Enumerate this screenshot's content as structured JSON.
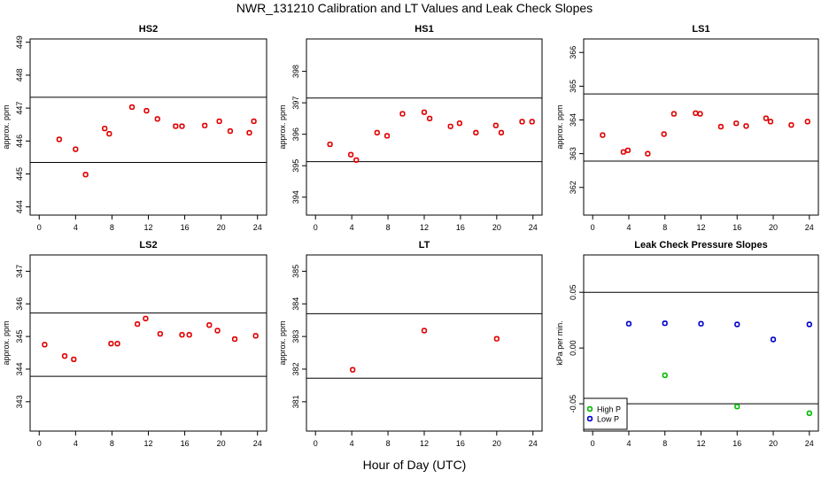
{
  "title": "NWR_131210  Calibration and LT Values and Leak Check Slopes",
  "x_axis_title": "Hour of Day (UTC)",
  "colors": {
    "axis": "#000000",
    "cal_points": "#e00000",
    "high_p": "#00bb00",
    "low_p": "#0000cc"
  },
  "chart_data": [
    {
      "type": "scatter",
      "title": "HS2",
      "ylabel": "approx. ppm",
      "xlim": [
        -1,
        25
      ],
      "ylim": [
        443.75,
        449.1
      ],
      "xticks": [
        0,
        4,
        8,
        12,
        16,
        20,
        24
      ],
      "yticks": [
        444,
        445,
        446,
        447,
        448,
        449
      ],
      "hlines": [
        447.33,
        445.35
      ],
      "points": [
        [
          2.2,
          446.05
        ],
        [
          4.0,
          445.75
        ],
        [
          5.1,
          444.98
        ],
        [
          7.2,
          446.38
        ],
        [
          7.7,
          446.22
        ],
        [
          10.2,
          447.03
        ],
        [
          11.8,
          446.92
        ],
        [
          13.0,
          446.67
        ],
        [
          15.0,
          446.45
        ],
        [
          15.7,
          446.45
        ],
        [
          18.2,
          446.47
        ],
        [
          19.8,
          446.6
        ],
        [
          21.0,
          446.3
        ],
        [
          23.1,
          446.25
        ],
        [
          23.6,
          446.6
        ]
      ]
    },
    {
      "type": "scatter",
      "title": "HS1",
      "ylabel": "approx. ppm",
      "xlim": [
        -1,
        25
      ],
      "ylim": [
        393.43,
        399.03
      ],
      "xticks": [
        0,
        4,
        8,
        12,
        16,
        20,
        24
      ],
      "yticks": [
        394,
        395,
        396,
        397,
        398
      ],
      "hlines": [
        397.15,
        395.13
      ],
      "points": [
        [
          1.6,
          395.68
        ],
        [
          3.9,
          395.35
        ],
        [
          4.5,
          395.18
        ],
        [
          6.8,
          396.05
        ],
        [
          7.9,
          395.95
        ],
        [
          9.6,
          396.65
        ],
        [
          12.0,
          396.7
        ],
        [
          12.6,
          396.5
        ],
        [
          14.9,
          396.25
        ],
        [
          15.9,
          396.35
        ],
        [
          17.7,
          396.05
        ],
        [
          19.9,
          396.28
        ],
        [
          20.5,
          396.05
        ],
        [
          22.8,
          396.4
        ],
        [
          23.9,
          396.4
        ]
      ]
    },
    {
      "type": "scatter",
      "title": "LS1",
      "ylabel": "approx. ppm",
      "xlim": [
        -1,
        25
      ],
      "ylim": [
        361.18,
        366.4
      ],
      "xticks": [
        0,
        4,
        8,
        12,
        16,
        20,
        24
      ],
      "yticks": [
        362,
        363,
        364,
        365,
        366
      ],
      "hlines": [
        364.77,
        362.78
      ],
      "points": [
        [
          1.1,
          363.55
        ],
        [
          3.4,
          363.05
        ],
        [
          3.9,
          363.1
        ],
        [
          6.1,
          363.0
        ],
        [
          7.9,
          363.58
        ],
        [
          9.0,
          364.18
        ],
        [
          11.4,
          364.2
        ],
        [
          11.9,
          364.18
        ],
        [
          14.2,
          363.8
        ],
        [
          15.9,
          363.9
        ],
        [
          17.0,
          363.82
        ],
        [
          19.2,
          364.05
        ],
        [
          19.7,
          363.95
        ],
        [
          22.0,
          363.85
        ],
        [
          23.8,
          363.95
        ]
      ]
    },
    {
      "type": "scatter",
      "title": "LS2",
      "ylabel": "approx. ppm",
      "xlim": [
        -1,
        25
      ],
      "ylim": [
        342.1,
        347.5
      ],
      "xticks": [
        0,
        4,
        8,
        12,
        16,
        20,
        24
      ],
      "yticks": [
        343,
        344,
        345,
        346,
        347
      ],
      "hlines": [
        345.72,
        343.78
      ],
      "points": [
        [
          0.6,
          344.75
        ],
        [
          2.8,
          344.4
        ],
        [
          3.8,
          344.3
        ],
        [
          7.9,
          344.78
        ],
        [
          8.6,
          344.78
        ],
        [
          10.8,
          345.38
        ],
        [
          11.7,
          345.55
        ],
        [
          13.3,
          345.08
        ],
        [
          15.7,
          345.05
        ],
        [
          16.5,
          345.05
        ],
        [
          18.7,
          345.35
        ],
        [
          19.6,
          345.18
        ],
        [
          21.5,
          344.92
        ],
        [
          23.8,
          345.02
        ]
      ]
    },
    {
      "type": "scatter",
      "title": "LT",
      "ylabel": "approx. ppm",
      "xlim": [
        -1,
        25
      ],
      "ylim": [
        380.1,
        385.5
      ],
      "xticks": [
        0,
        4,
        8,
        12,
        16,
        20,
        24
      ],
      "yticks": [
        381,
        382,
        383,
        384,
        385
      ],
      "hlines": [
        383.7,
        381.72
      ],
      "points": [
        [
          4.1,
          381.98
        ],
        [
          12.0,
          383.18
        ],
        [
          20.0,
          382.93
        ]
      ]
    },
    {
      "type": "scatter",
      "title": "Leak Check Pressure Slopes",
      "ylabel": "kPa per min.",
      "xlim": [
        -1,
        25
      ],
      "ylim": [
        -0.0745,
        0.0835
      ],
      "xticks": [
        0,
        4,
        8,
        12,
        16,
        20,
        24
      ],
      "yticks": [
        -0.05,
        0.0,
        0.05
      ],
      "ytick_labels": [
        "-0.05",
        "0.00",
        "0.05"
      ],
      "hlines": [
        0.05,
        -0.05
      ],
      "legend": {
        "position": "bottom-left",
        "entries": [
          "High P",
          "Low P"
        ]
      },
      "series": [
        {
          "name": "High P",
          "points": [
            [
              8,
              -0.0245
            ],
            [
              16,
              -0.0525
            ],
            [
              24,
              -0.0585
            ]
          ]
        },
        {
          "name": "Low P",
          "points": [
            [
              4,
              0.0218
            ],
            [
              8,
              0.0222
            ],
            [
              12,
              0.0218
            ],
            [
              16,
              0.0212
            ],
            [
              20,
              0.0077
            ],
            [
              24,
              0.0212
            ]
          ]
        }
      ]
    }
  ]
}
